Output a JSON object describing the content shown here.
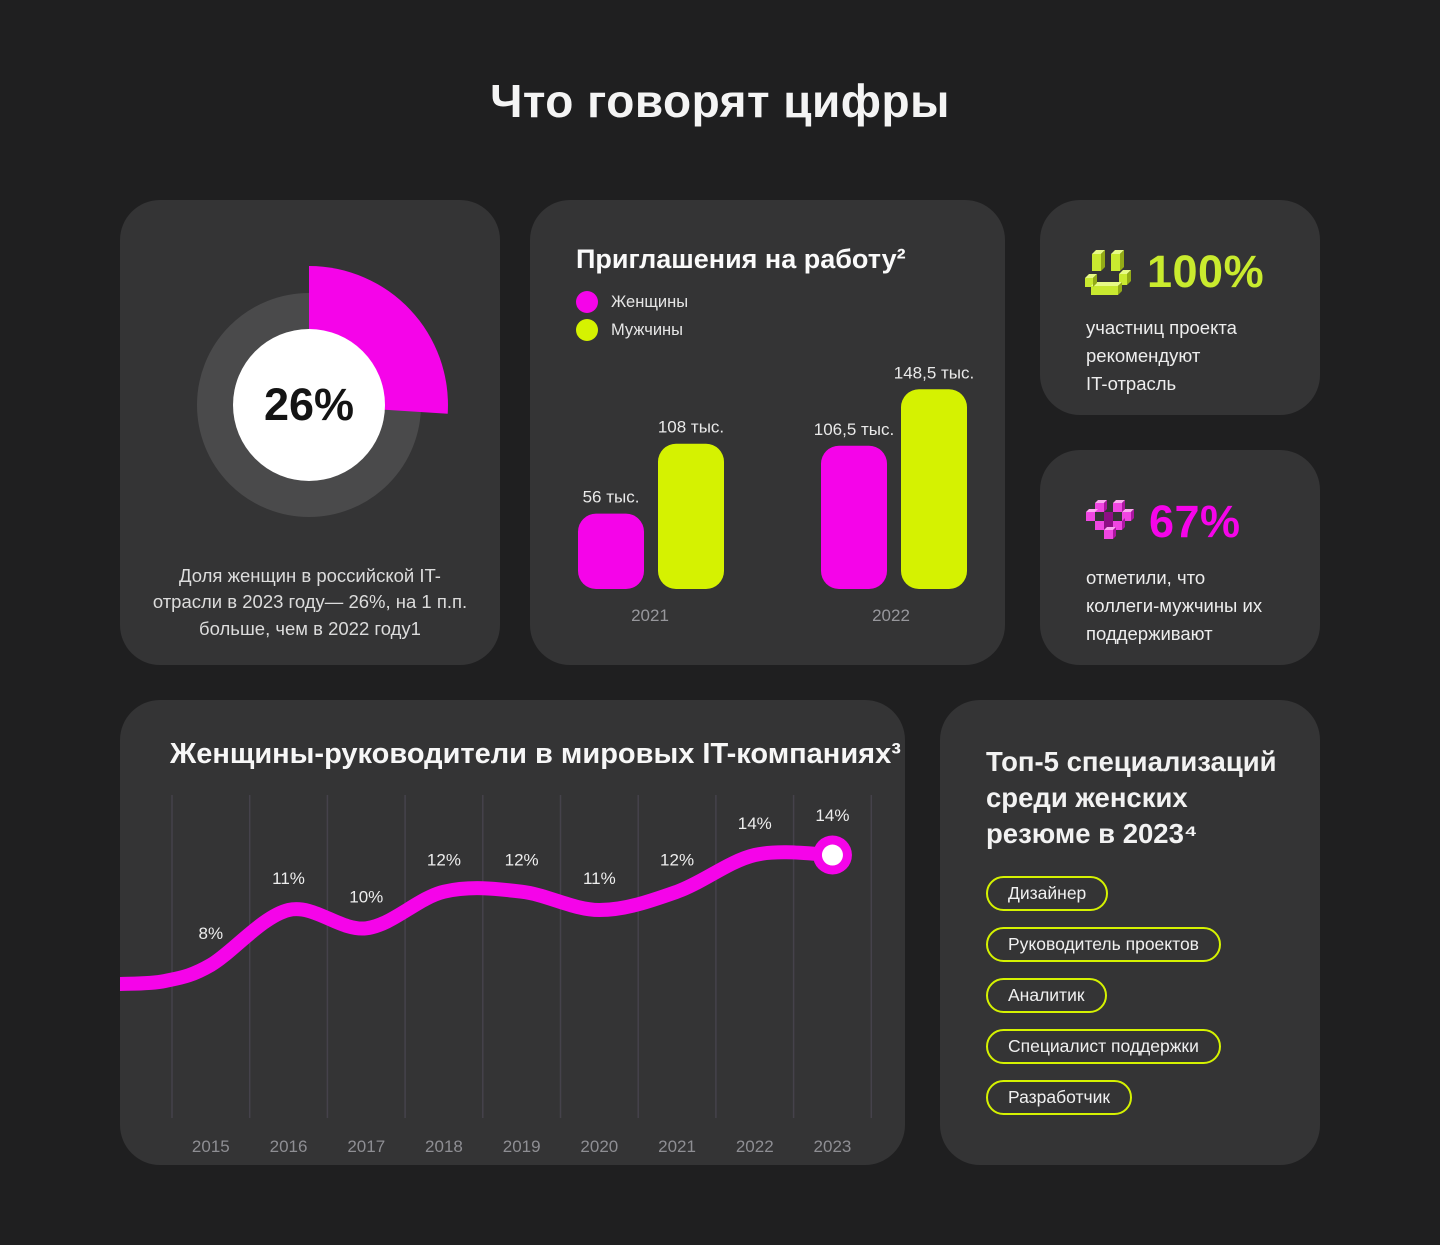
{
  "page": {
    "title": "Что говорят цифры"
  },
  "colors": {
    "pink": "#F504E9",
    "green": "#D5F201",
    "green_accent": "#C9EB2E",
    "page_bg": "#1F1F20",
    "card_bg": "#343435",
    "ring_gray": "#4A4A4B"
  },
  "cards": {
    "donut": {
      "description_lines": [
        "Доля женщин в российской IT-",
        "отрасли в 2023 году— 26%, на 1 п.п.",
        "больше, чем в 2022 году1"
      ]
    },
    "stat100": {
      "value": "100%",
      "icon": "pixel-smiley-icon",
      "lines": [
        "участниц проекта",
        "рекомендуют",
        "IT-отрасль"
      ]
    },
    "stat67": {
      "value": "67%",
      "icon": "pixel-heart-icon",
      "lines": [
        "отметили, что",
        "коллеги-мужчины их",
        "поддерживают"
      ]
    },
    "top5": {
      "title_lines": [
        "Топ-5 специализаций",
        "среди женских",
        "резюме в 2023⁴"
      ],
      "pills": [
        "Дизайнер",
        "Руководитель проектов",
        "Аналитик",
        "Специалист поддержки",
        "Разработчик"
      ]
    }
  },
  "chart_data": [
    {
      "type": "pie",
      "values": [
        26,
        74
      ],
      "center_label": "26%",
      "colors": [
        "#F504E9",
        "#4A4A4B"
      ]
    },
    {
      "type": "bar",
      "title": "Приглашения на работу²",
      "categories": [
        "2021",
        "2022"
      ],
      "unit": "тыс.",
      "legend_position": "top-left",
      "series": [
        {
          "name": "Женщины",
          "color": "#F504E9",
          "values": [
            56,
            106.5
          ],
          "value_labels": [
            "56 тыс.",
            "106,5 тыс."
          ]
        },
        {
          "name": "Мужчины",
          "color": "#D5F201",
          "values": [
            108,
            148.5
          ],
          "value_labels": [
            "108 тыс.",
            "148,5 тыс."
          ]
        }
      ]
    },
    {
      "type": "line",
      "title": "Женщины-руководители в мировых IT-компаниях³",
      "x": [
        "2015",
        "2016",
        "2017",
        "2018",
        "2019",
        "2020",
        "2021",
        "2022",
        "2023"
      ],
      "values": [
        8,
        11,
        10,
        12,
        12,
        11,
        12,
        14,
        14
      ],
      "value_labels": [
        "8%",
        "11%",
        "10%",
        "12%",
        "12%",
        "11%",
        "12%",
        "14%",
        "14%"
      ],
      "color": "#F504E9",
      "grid": "vertical",
      "marker": "last-point"
    }
  ]
}
